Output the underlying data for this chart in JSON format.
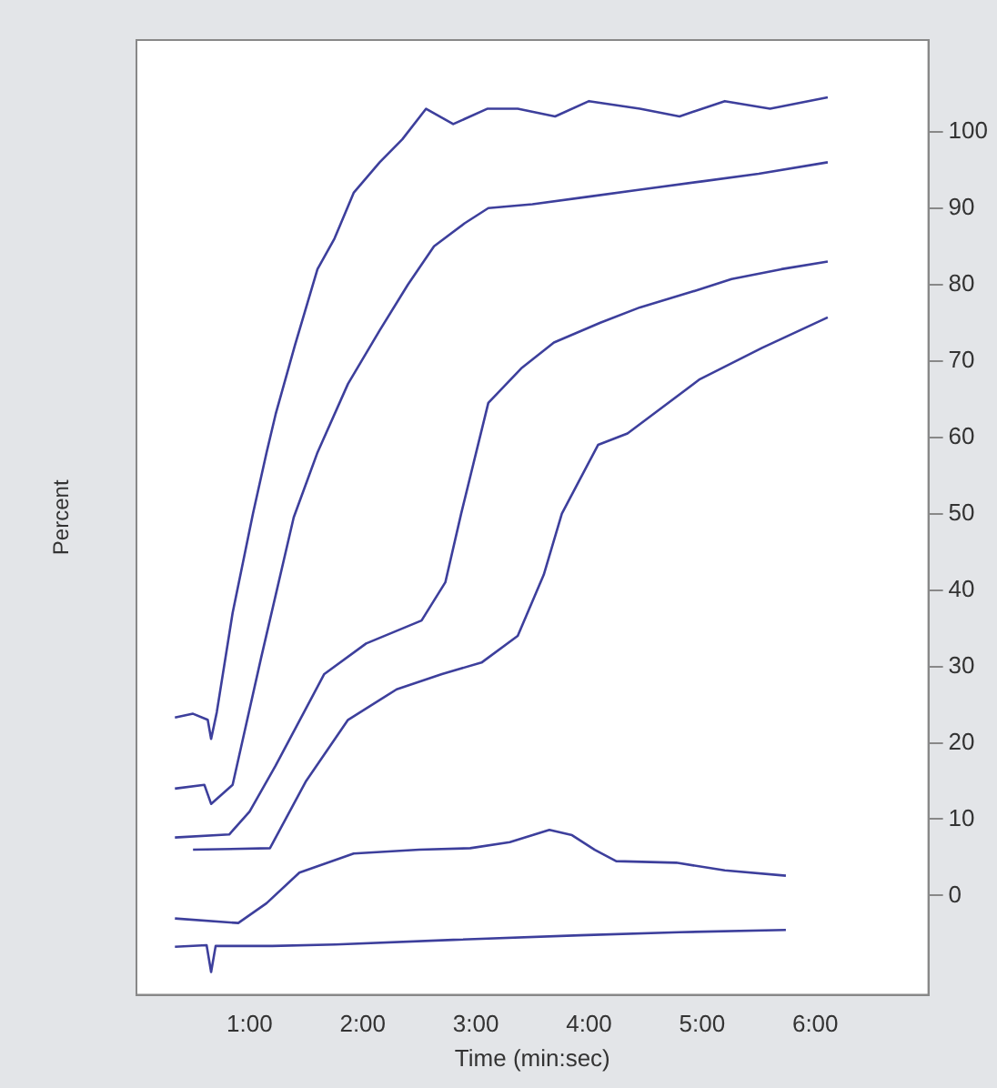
{
  "chart_data": {
    "type": "line",
    "xlabel": "Time (min:sec)",
    "ylabel": "Percent",
    "xlim": [
      0,
      7
    ],
    "xticks": [
      {
        "value": 1,
        "label": "1:00"
      },
      {
        "value": 2,
        "label": "2:00"
      },
      {
        "value": 3,
        "label": "3:00"
      },
      {
        "value": 4,
        "label": "4:00"
      },
      {
        "value": 5,
        "label": "5:00"
      },
      {
        "value": 6,
        "label": "6:00"
      }
    ],
    "ylim": [
      -13,
      112
    ],
    "yticks": [
      0,
      10,
      20,
      30,
      40,
      50,
      60,
      70,
      80,
      90,
      100
    ],
    "grid": false,
    "legend": false,
    "series": [
      {
        "color": "#3d3f9c",
        "x": [
          0.34,
          0.5,
          0.63,
          0.66,
          0.71,
          0.85,
          1.03,
          1.15,
          1.23,
          1.4,
          1.6,
          1.75,
          1.92,
          2.15,
          2.35,
          2.56,
          2.8,
          3.1,
          3.37,
          3.7,
          4.0,
          4.45,
          4.8,
          5.2,
          5.6,
          6.11
        ],
        "values": [
          23.3,
          23.8,
          23,
          20.5,
          24,
          37,
          50,
          58,
          63,
          72,
          82,
          86,
          92,
          96,
          99,
          103,
          101,
          103,
          103,
          102,
          104,
          103,
          102,
          104,
          103,
          104.5
        ]
      },
      {
        "color": "#3d3f9c",
        "x": [
          0.34,
          0.6,
          0.66,
          0.85,
          1.1,
          1.39,
          1.6,
          1.87,
          2.15,
          2.4,
          2.63,
          2.9,
          3.11,
          3.5,
          4.0,
          4.45,
          5.0,
          5.5,
          6.11
        ],
        "values": [
          14,
          14.5,
          12,
          14.5,
          31,
          49.5,
          58,
          67,
          74,
          80,
          85,
          88,
          90,
          90.5,
          91.5,
          92.4,
          93.5,
          94.5,
          96
        ]
      },
      {
        "color": "#3d3f9c",
        "x": [
          0.34,
          0.82,
          1.0,
          1.23,
          1.66,
          2.03,
          2.52,
          2.73,
          2.87,
          3.11,
          3.4,
          3.69,
          4.1,
          4.45,
          4.9,
          5.26,
          5.7,
          6.11
        ],
        "values": [
          7.6,
          8,
          11,
          17,
          29,
          33,
          36,
          41,
          50,
          64.5,
          69,
          72.4,
          75,
          77,
          79,
          80.7,
          82,
          83
        ]
      },
      {
        "color": "#3d3f9c",
        "x": [
          0.5,
          1.18,
          1.5,
          1.87,
          2.3,
          2.7,
          3.05,
          3.37,
          3.6,
          3.76,
          4.08,
          4.34,
          4.98,
          5.53,
          6.11
        ],
        "values": [
          6,
          6.2,
          15,
          23,
          27,
          29,
          30.5,
          34,
          42,
          50,
          59,
          60.5,
          67.6,
          71.7,
          75.7
        ]
      },
      {
        "color": "#3d3f9c",
        "x": [
          0.34,
          0.9,
          1.15,
          1.44,
          1.92,
          2.5,
          2.95,
          3.3,
          3.65,
          3.85,
          4.05,
          4.24,
          4.77,
          5.2,
          5.74
        ],
        "values": [
          -3,
          -3.6,
          -1,
          3,
          5.5,
          6,
          6.2,
          7,
          8.6,
          7.9,
          6,
          4.5,
          4.3,
          3.3,
          2.6
        ]
      },
      {
        "color": "#3d3f9c",
        "x": [
          0.34,
          0.62,
          0.66,
          0.7,
          1.2,
          1.76,
          2.8,
          3.92,
          4.8,
          5.74
        ],
        "values": [
          -6.7,
          -6.5,
          -10,
          -6.6,
          -6.6,
          -6.4,
          -5.8,
          -5.2,
          -4.8,
          -4.5
        ]
      }
    ]
  }
}
